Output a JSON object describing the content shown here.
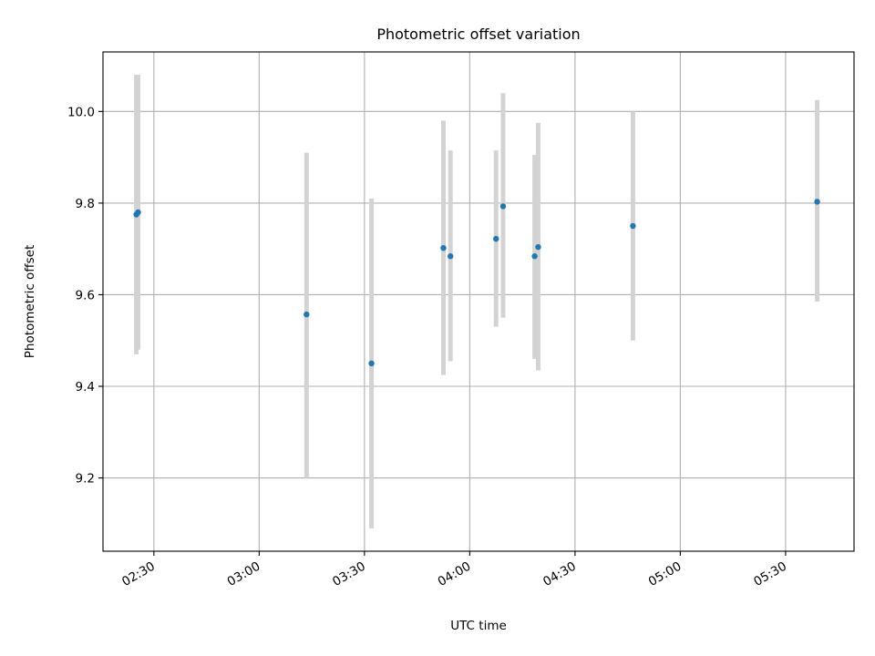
{
  "chart_data": {
    "type": "scatter",
    "title": "Photometric offset variation",
    "xlabel": "UTC time",
    "ylabel": "Photometric offset",
    "x_unit": "UTC time (HH:MM)",
    "xlim": [
      "02:15:30",
      "05:49:30"
    ],
    "ylim": [
      9.04,
      10.13
    ],
    "xticks": [
      "02:30",
      "03:00",
      "03:30",
      "04:00",
      "04:30",
      "05:00",
      "05:30"
    ],
    "yticks": [
      9.2,
      9.4,
      9.6,
      9.8,
      10.0
    ],
    "grid": true,
    "marker_color": "#1f77b4",
    "errorbar_color": "#d3d3d3",
    "points": [
      {
        "x": "02:25:00",
        "y": 9.775,
        "ymin": 9.47,
        "ymax": 10.08
      },
      {
        "x": "02:25:30",
        "y": 9.78,
        "ymin": 9.48,
        "ymax": 10.08
      },
      {
        "x": "03:13:30",
        "y": 9.557,
        "ymin": 9.2,
        "ymax": 9.91
      },
      {
        "x": "03:32:00",
        "y": 9.45,
        "ymin": 9.09,
        "ymax": 9.81
      },
      {
        "x": "03:52:30",
        "y": 9.702,
        "ymin": 9.425,
        "ymax": 9.98
      },
      {
        "x": "03:54:30",
        "y": 9.684,
        "ymin": 9.455,
        "ymax": 9.915
      },
      {
        "x": "04:07:30",
        "y": 9.722,
        "ymin": 9.53,
        "ymax": 9.915
      },
      {
        "x": "04:09:30",
        "y": 9.793,
        "ymin": 9.55,
        "ymax": 10.04
      },
      {
        "x": "04:18:30",
        "y": 9.684,
        "ymin": 9.46,
        "ymax": 9.905
      },
      {
        "x": "04:19:30",
        "y": 9.704,
        "ymin": 9.435,
        "ymax": 9.975
      },
      {
        "x": "04:46:30",
        "y": 9.75,
        "ymin": 9.5,
        "ymax": 10.0
      },
      {
        "x": "05:39:00",
        "y": 9.803,
        "ymin": 9.585,
        "ymax": 10.025
      }
    ]
  }
}
